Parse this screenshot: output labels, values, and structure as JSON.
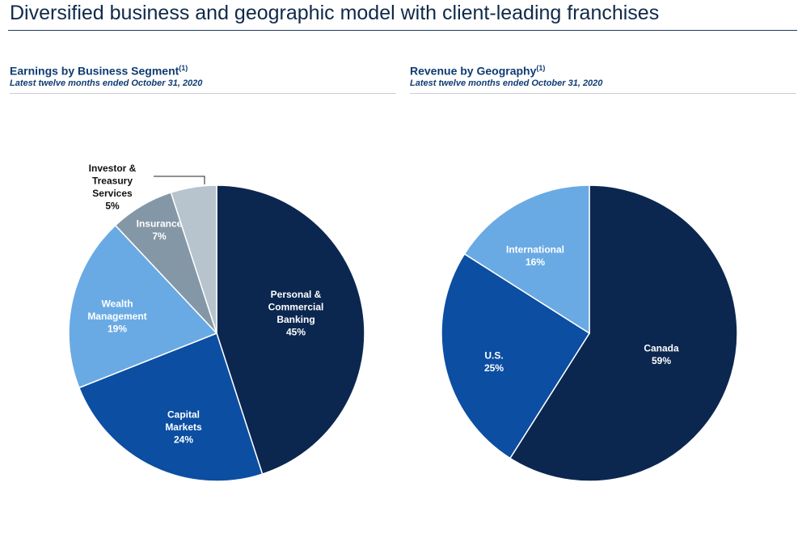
{
  "header": {
    "title": "Diversified business and geographic model with client-leading franchises"
  },
  "chart_data": [
    {
      "type": "pie",
      "title": "Earnings by Business Segment",
      "title_sup": "(1)",
      "subtitle": "Latest twelve months ended October 31, 2020",
      "slices": [
        {
          "label": [
            "Personal &",
            "Commercial",
            "Banking"
          ],
          "value": 45,
          "value_label": "45%",
          "color": "#0b2750",
          "text_color": "#ffffff"
        },
        {
          "label": [
            "Capital",
            "Markets"
          ],
          "value": 24,
          "value_label": "24%",
          "color": "#0b4ea2",
          "text_color": "#ffffff"
        },
        {
          "label": [
            "Wealth",
            "Management"
          ],
          "value": 19,
          "value_label": "19%",
          "color": "#6aaae4",
          "text_color": "#ffffff"
        },
        {
          "label": [
            "Insurance"
          ],
          "value": 7,
          "value_label": "7%",
          "color": "#8497a6",
          "text_color": "#ffffff"
        },
        {
          "label": [
            "Investor &",
            "Treasury",
            "Services"
          ],
          "value": 5,
          "value_label": "5%",
          "color": "#b7c4ce",
          "text_color": "#111111",
          "outside": true
        }
      ]
    },
    {
      "type": "pie",
      "title": "Revenue by Geography",
      "title_sup": "(1)",
      "subtitle": "Latest twelve months ended October 31, 2020",
      "slices": [
        {
          "label": [
            "Canada"
          ],
          "value": 59,
          "value_label": "59%",
          "color": "#0b2750",
          "text_color": "#ffffff"
        },
        {
          "label": [
            "U.S."
          ],
          "value": 25,
          "value_label": "25%",
          "color": "#0b4ea2",
          "text_color": "#ffffff"
        },
        {
          "label": [
            "International"
          ],
          "value": 16,
          "value_label": "16%",
          "color": "#6aaae4",
          "text_color": "#ffffff"
        }
      ]
    }
  ]
}
